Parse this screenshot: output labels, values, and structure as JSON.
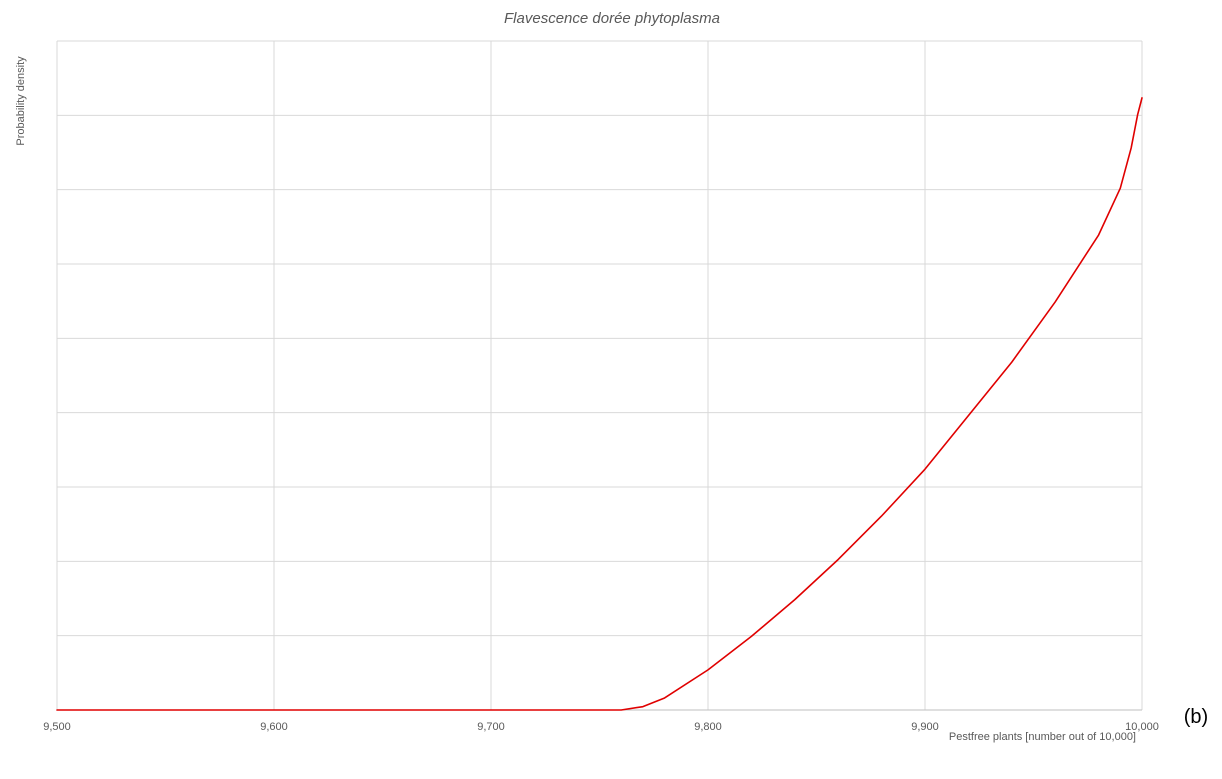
{
  "chart_data": {
    "type": "line",
    "title": "Flavescence dorée phytoplasma",
    "xlabel": "Pestfree plants [number out of 10,000]",
    "ylabel": "Probability density",
    "panel_label": "(b)",
    "xlim": [
      9500,
      10000
    ],
    "ylim": [
      0,
      1
    ],
    "x_ticks": [
      9500,
      9600,
      9700,
      9800,
      9900,
      10000
    ],
    "x_tick_labels": [
      "9,500",
      "9,600",
      "9,700",
      "9,800",
      "9,900",
      "10,000"
    ],
    "y_gridline_count": 9,
    "y_tick_labels_shown": false,
    "grid": true,
    "legend": "none",
    "series": [
      {
        "color": "#e00000",
        "x": [
          9500,
          9760,
          9770,
          9780,
          9800,
          9820,
          9840,
          9860,
          9880,
          9900,
          9920,
          9940,
          9960,
          9980,
          9990,
          9995,
          9998,
          10000
        ],
        "y": [
          0,
          0,
          0.005,
          0.018,
          0.06,
          0.11,
          0.165,
          0.225,
          0.29,
          0.36,
          0.44,
          0.52,
          0.61,
          0.71,
          0.78,
          0.84,
          0.89,
          0.915
        ]
      }
    ]
  }
}
